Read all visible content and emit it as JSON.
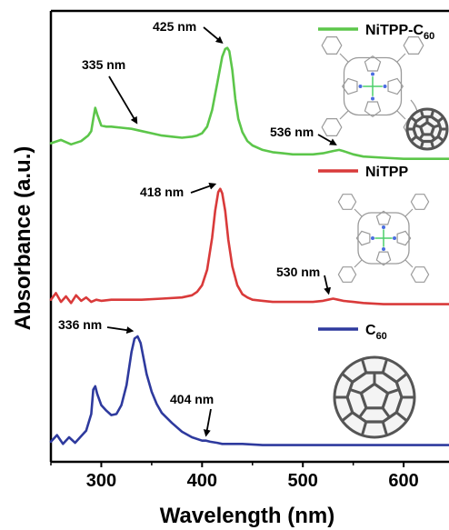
{
  "chart_data": {
    "type": "line",
    "xlabel": "Wavelength (nm)",
    "ylabel": "Absorbance (a.u.)",
    "xlim": [
      250,
      645
    ],
    "x_ticks": [
      300,
      400,
      500,
      600
    ],
    "x_tick_labels": [
      "300",
      "400",
      "500",
      "600"
    ],
    "y_ticks_shown": false,
    "grid": false,
    "legend": "per-curve labels at right",
    "series": [
      {
        "name": "NiTPP-C",
        "name_subscript": "60",
        "color": "#5cc64a",
        "offset": 2.0,
        "x": [
          250,
          260,
          270,
          280,
          287,
          290,
          292,
          294,
          296,
          300,
          305,
          310,
          320,
          330,
          340,
          350,
          360,
          370,
          380,
          390,
          395,
          400,
          405,
          410,
          415,
          420,
          423,
          425,
          427,
          430,
          433,
          436,
          440,
          445,
          450,
          460,
          470,
          480,
          490,
          500,
          510,
          520,
          530,
          536,
          540,
          550,
          560,
          580,
          600,
          620,
          645
        ],
        "y": [
          0.2,
          0.23,
          0.19,
          0.22,
          0.27,
          0.31,
          0.42,
          0.52,
          0.46,
          0.36,
          0.35,
          0.35,
          0.34,
          0.33,
          0.31,
          0.29,
          0.27,
          0.26,
          0.25,
          0.26,
          0.27,
          0.29,
          0.35,
          0.5,
          0.74,
          0.98,
          1.05,
          1.06,
          1.03,
          0.86,
          0.6,
          0.42,
          0.3,
          0.22,
          0.18,
          0.14,
          0.12,
          0.11,
          0.1,
          0.1,
          0.1,
          0.11,
          0.13,
          0.14,
          0.13,
          0.1,
          0.08,
          0.07,
          0.06,
          0.06,
          0.06
        ]
      },
      {
        "name": "NiTPP",
        "color": "#d93a3a",
        "offset": 1.0,
        "x": [
          250,
          255,
          260,
          265,
          270,
          275,
          280,
          285,
          290,
          295,
          300,
          310,
          320,
          340,
          360,
          380,
          390,
          395,
          400,
          405,
          410,
          413,
          416,
          418,
          420,
          423,
          426,
          430,
          435,
          440,
          445,
          450,
          460,
          470,
          480,
          490,
          500,
          510,
          520,
          525,
          530,
          535,
          540,
          550,
          560,
          580,
          600,
          620,
          645
        ],
        "y": [
          0.06,
          0.12,
          0.04,
          0.09,
          0.03,
          0.1,
          0.05,
          0.08,
          0.04,
          0.06,
          0.05,
          0.06,
          0.06,
          0.06,
          0.07,
          0.08,
          0.1,
          0.13,
          0.19,
          0.33,
          0.62,
          0.86,
          1.03,
          1.06,
          1.02,
          0.86,
          0.6,
          0.36,
          0.19,
          0.11,
          0.08,
          0.06,
          0.05,
          0.04,
          0.04,
          0.04,
          0.04,
          0.04,
          0.05,
          0.06,
          0.07,
          0.06,
          0.05,
          0.04,
          0.03,
          0.02,
          0.02,
          0.02,
          0.02
        ]
      },
      {
        "name": "C",
        "name_subscript": "60",
        "color": "#2e3a9e",
        "offset": 0.0,
        "x": [
          250,
          256,
          262,
          268,
          274,
          280,
          285,
          290,
          292,
          294,
          296,
          300,
          305,
          310,
          315,
          320,
          325,
          330,
          333,
          336,
          339,
          342,
          345,
          350,
          355,
          360,
          370,
          380,
          390,
          400,
          404,
          408,
          415,
          420,
          440,
          460,
          500,
          550,
          600,
          645
        ],
        "y": [
          0.05,
          0.11,
          0.03,
          0.09,
          0.04,
          0.1,
          0.15,
          0.3,
          0.52,
          0.55,
          0.48,
          0.38,
          0.33,
          0.29,
          0.3,
          0.38,
          0.56,
          0.86,
          0.98,
          1.0,
          0.94,
          0.8,
          0.66,
          0.5,
          0.39,
          0.31,
          0.22,
          0.14,
          0.09,
          0.06,
          0.06,
          0.05,
          0.04,
          0.03,
          0.03,
          0.02,
          0.02,
          0.02,
          0.02,
          0.02
        ]
      }
    ],
    "annotations": [
      {
        "text": "335 nm",
        "series": 0,
        "x": 335
      },
      {
        "text": "425 nm",
        "series": 0,
        "x": 425
      },
      {
        "text": "536 nm",
        "series": 0,
        "x": 536
      },
      {
        "text": "418 nm",
        "series": 1,
        "x": 418
      },
      {
        "text": "530 nm",
        "series": 1,
        "x": 530
      },
      {
        "text": "336 nm",
        "series": 2,
        "x": 336
      },
      {
        "text": "404 nm",
        "series": 2,
        "x": 404
      }
    ]
  }
}
